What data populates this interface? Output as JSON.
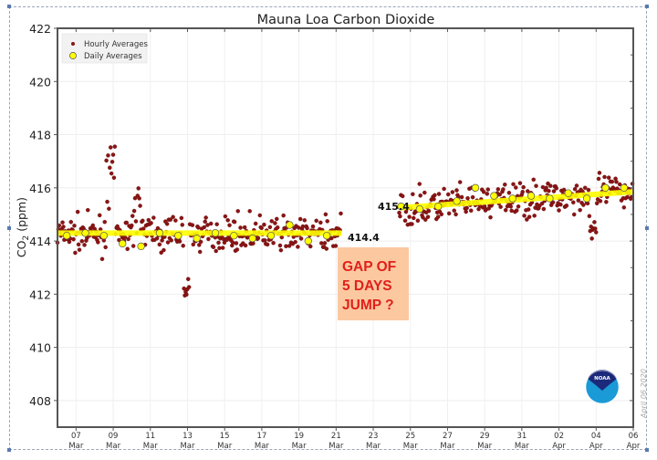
{
  "chart_data": {
    "type": "scatter",
    "title": "Mauna Loa Carbon Dioxide",
    "xlabel": "",
    "ylabel": "CO2 (ppm)",
    "ylabel_main": "CO",
    "ylabel_sub": "2",
    "ylabel_unit": "(ppm)",
    "ylim": [
      407,
      422
    ],
    "yticks": [
      408,
      410,
      412,
      414,
      416,
      418,
      420,
      422
    ],
    "xlim_days_since_mar1": [
      5.0,
      36.0
    ],
    "xticks": [
      {
        "day": 6,
        "top": "07",
        "bottom": "Mar"
      },
      {
        "day": 8,
        "top": "09",
        "bottom": "Mar"
      },
      {
        "day": 10,
        "top": "11",
        "bottom": "Mar"
      },
      {
        "day": 12,
        "top": "13",
        "bottom": "Mar"
      },
      {
        "day": 14,
        "top": "15",
        "bottom": "Mar"
      },
      {
        "day": 16,
        "top": "17",
        "bottom": "Mar"
      },
      {
        "day": 18,
        "top": "19",
        "bottom": "Mar"
      },
      {
        "day": 20,
        "top": "21",
        "bottom": "Mar"
      },
      {
        "day": 22,
        "top": "23",
        "bottom": "Mar"
      },
      {
        "day": 24,
        "top": "25",
        "bottom": "Mar"
      },
      {
        "day": 26,
        "top": "27",
        "bottom": "Mar"
      },
      {
        "day": 28,
        "top": "29",
        "bottom": "Mar"
      },
      {
        "day": 30,
        "top": "31",
        "bottom": "Mar"
      },
      {
        "day": 32,
        "top": "02",
        "bottom": "Apr"
      },
      {
        "day": 34,
        "top": "04",
        "bottom": "Apr"
      },
      {
        "day": 36,
        "top": "06",
        "bottom": "Apr"
      }
    ],
    "grid": true,
    "legend_position": "top-left",
    "legend": [
      {
        "label": "Hourly Averages",
        "marker": "small-dot",
        "color": "#8b1414"
      },
      {
        "label": "Daily Averages",
        "marker": "circle",
        "color": "#ffff00"
      }
    ],
    "series": [
      {
        "name": "Daily Averages",
        "x": [
          5.5,
          6.5,
          7.5,
          8.5,
          9.5,
          10.5,
          11.5,
          12.5,
          13.5,
          14.5,
          15.5,
          16.5,
          17.5,
          18.5,
          19.5,
          23.5,
          24.5,
          25.5,
          26.5,
          27.5,
          28.5,
          29.5,
          30.5,
          31.5,
          32.5,
          33.5,
          34.5,
          35.5
        ],
        "y": [
          414.2,
          414.3,
          414.2,
          413.9,
          413.8,
          414.3,
          414.2,
          414.1,
          414.3,
          414.2,
          414.1,
          414.2,
          414.6,
          414.0,
          414.2,
          415.3,
          415.2,
          415.3,
          415.5,
          416.0,
          415.7,
          415.6,
          415.7,
          415.6,
          415.8,
          415.6,
          416.0,
          416.0
        ]
      },
      {
        "name": "Hourly Averages",
        "note": "dense hourly scatter; approx ranges 412-417.6 before gap, 413.8-417.2 after gap",
        "segments": [
          {
            "x_start": 5.0,
            "x_end": 20.3,
            "center": 414.25,
            "spread": 0.45
          },
          {
            "x_start": 23.4,
            "x_end": 36.0,
            "center_start": 415.2,
            "center_end": 415.9,
            "spread": 0.45
          }
        ]
      }
    ],
    "trend_lines": [
      {
        "name": "before-gap",
        "x": [
          5.0,
          20.3
        ],
        "y": [
          414.3,
          414.3
        ],
        "label": "414.4",
        "color": "#ffff00"
      },
      {
        "name": "after-gap",
        "x": [
          23.4,
          36.0
        ],
        "y": [
          415.25,
          415.85
        ],
        "label": "415.4",
        "color": "#ffff00"
      }
    ],
    "annotations": [
      {
        "text_lines": [
          "GAP OF",
          "5 DAYS",
          "JUMP ?"
        ],
        "color": "#e0201a",
        "background": "#fbc8a0"
      }
    ],
    "date_stamp": "April 06 2020",
    "logo": "NOAA"
  }
}
